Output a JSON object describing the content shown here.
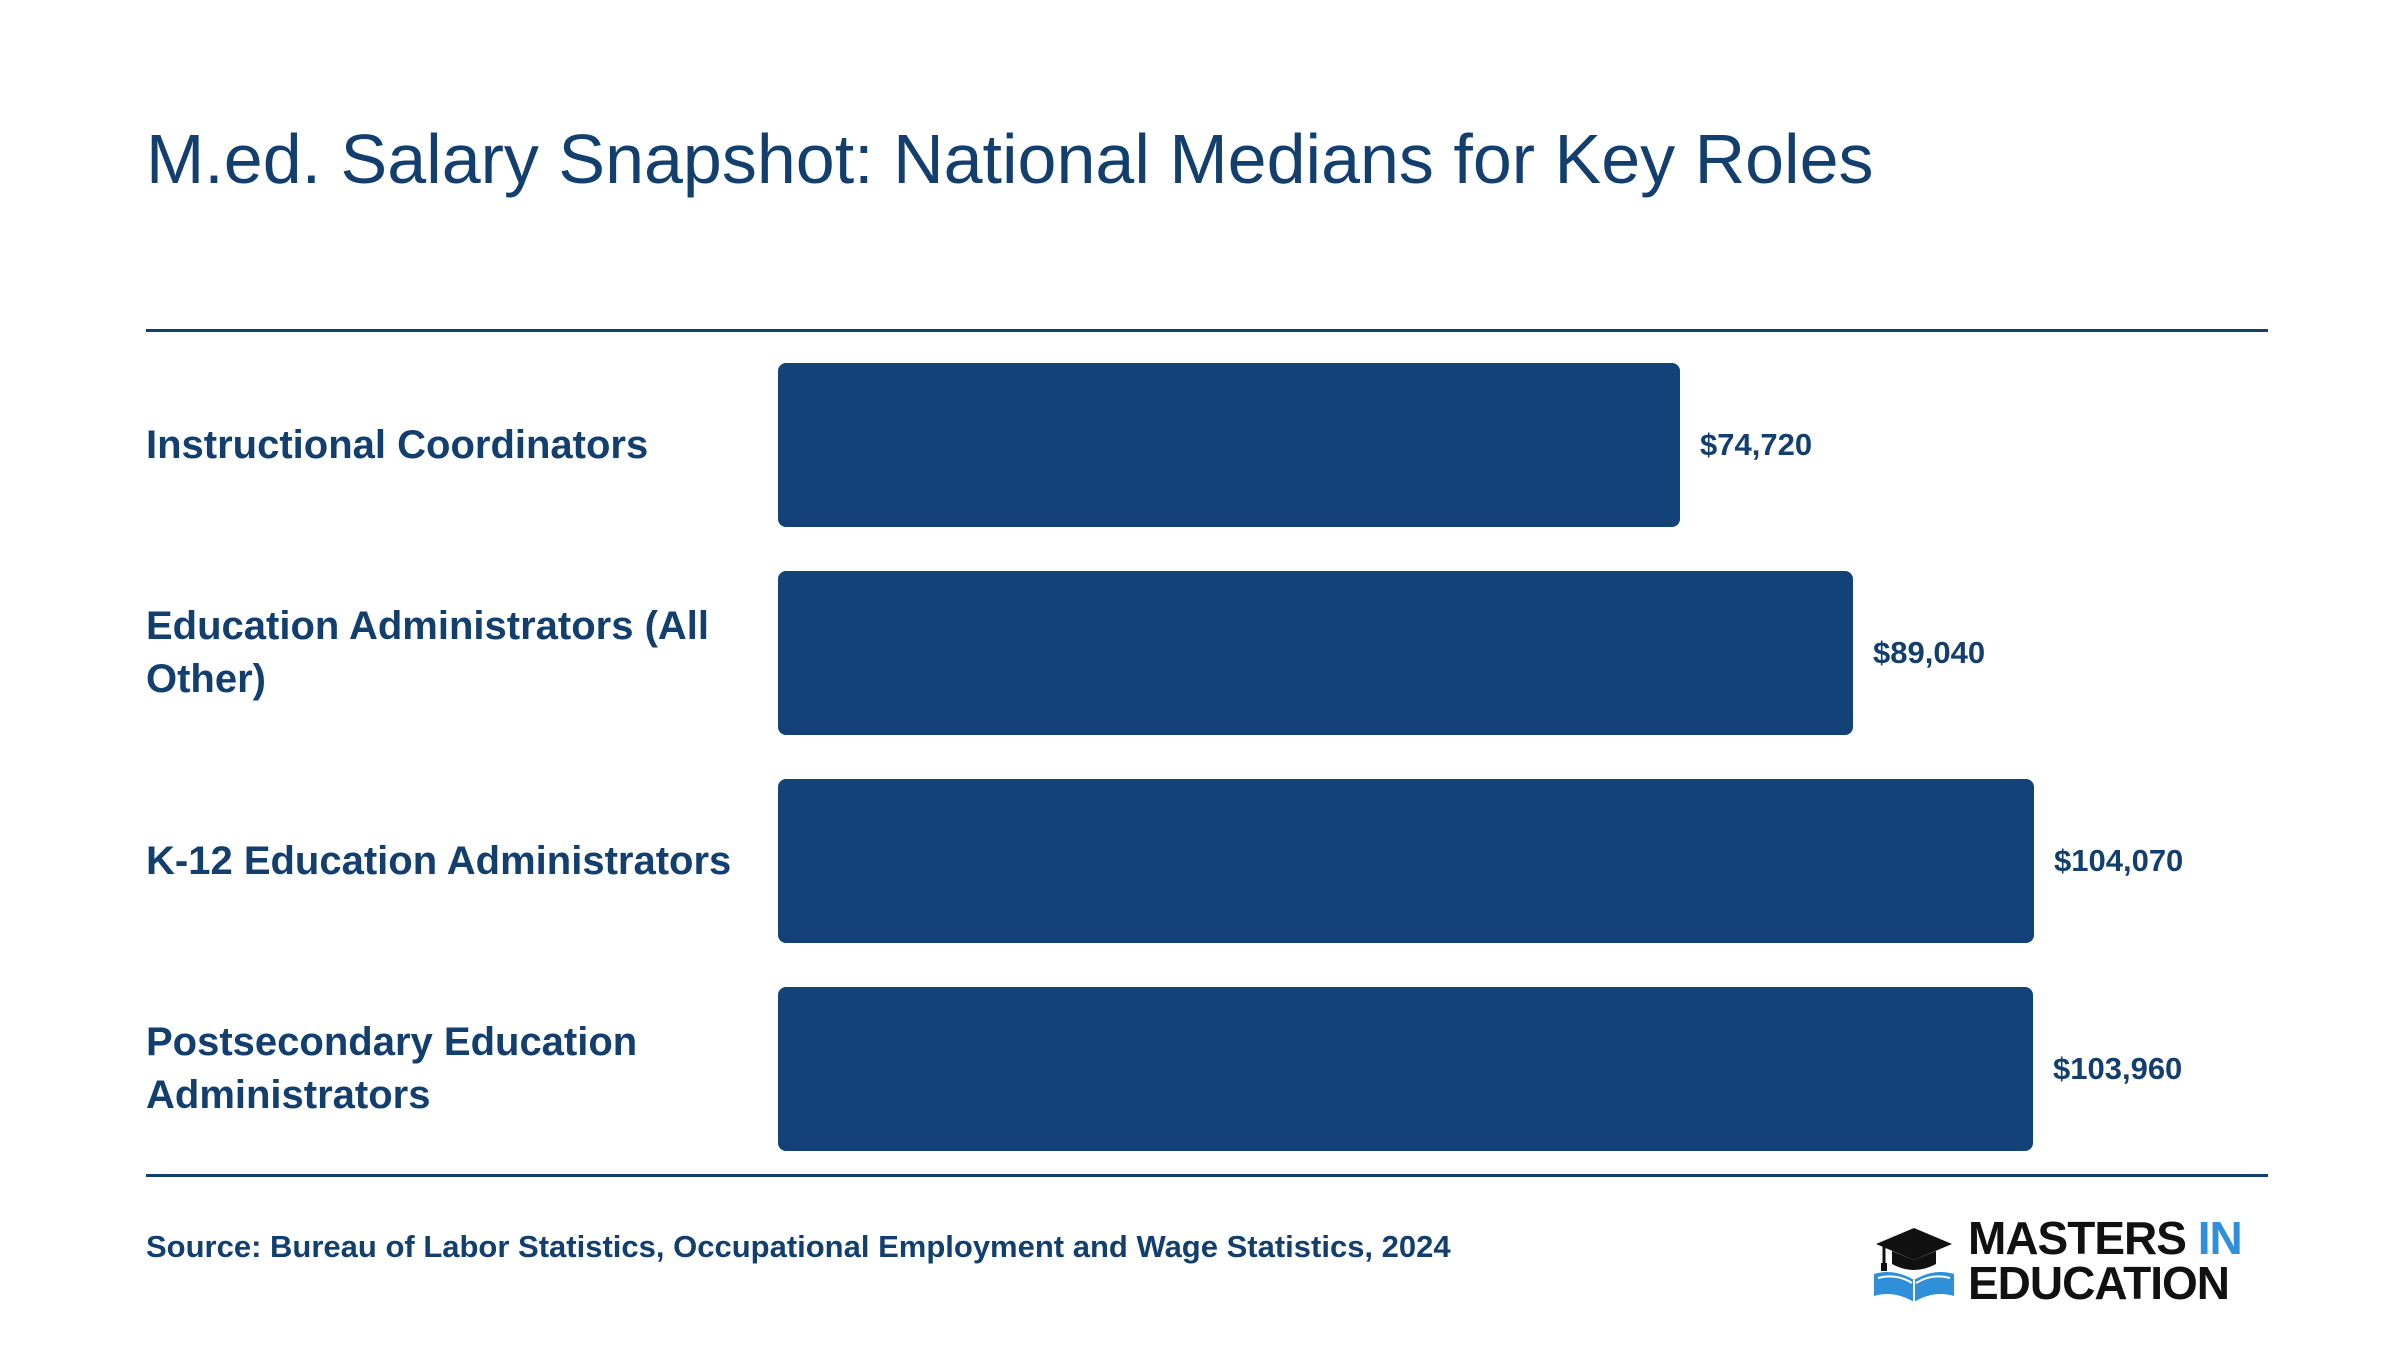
{
  "chart_data": {
    "type": "bar",
    "orientation": "horizontal",
    "title": "M.ed. Salary Snapshot: National Medians for Key Roles",
    "categories": [
      "Instructional Coordinators",
      "Education Administrators (All Other)",
      "K-12 Education Administrators",
      "Postsecondary Education Administrators"
    ],
    "values": [
      74720,
      89040,
      104070,
      103960
    ],
    "value_labels": [
      "$74,720",
      "$89,040",
      "$104,070",
      "$103,960"
    ],
    "xlim": [
      0,
      104070
    ],
    "grid": false,
    "legend": "none",
    "bar_color": "#124277"
  },
  "footer": {
    "source": "Source: Bureau of Labor Statistics, Occupational Employment and Wage Statistics, 2024"
  },
  "logo": {
    "line1_main": "MASTERS",
    "line1_accent": "IN",
    "line2": "EDUCATION",
    "icon": "graduation-cap-book-icon",
    "accent_color": "#2f8fd8"
  },
  "colors": {
    "primary": "#123f6e",
    "bar": "#124277"
  }
}
